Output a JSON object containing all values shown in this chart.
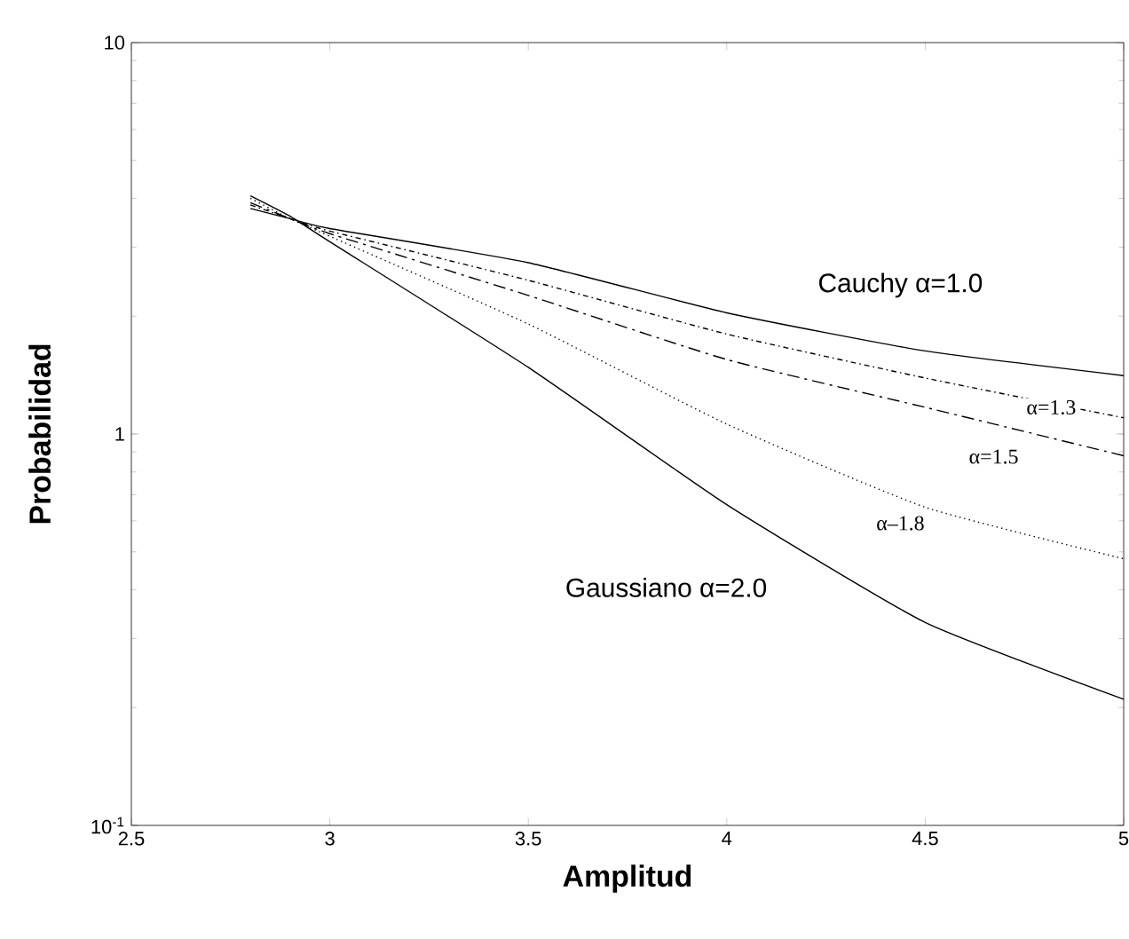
{
  "chart_data": {
    "type": "line",
    "xlabel": "Amplitud",
    "ylabel": "Probabilidad",
    "log": "y",
    "grid": false,
    "marker": "none",
    "xlim": [
      2.5,
      5
    ],
    "ylim": [
      0.1,
      10
    ],
    "xticks": [
      2.5,
      3,
      3.5,
      4,
      4.5,
      5
    ],
    "yticks": [
      {
        "value": 0.1,
        "label": "10$^{-1}$"
      },
      1,
      10
    ],
    "x": [
      2.8,
      2.9,
      3.0,
      3.5,
      4.0,
      4.5,
      5.0
    ],
    "series": [
      {
        "name": "Cauchy α=1.0",
        "color": "#000000",
        "line_style": "solid",
        "values": [
          3.77,
          3.55,
          3.35,
          2.74,
          2.04,
          1.63,
          1.41
        ]
      },
      {
        "name": "α=1.3",
        "color": "#000000",
        "line_style": "dashdot",
        "values": [
          3.85,
          3.55,
          3.3,
          2.47,
          1.8,
          1.39,
          1.1
        ]
      },
      {
        "name": "α=1.5",
        "color": "#000000",
        "line_style": "dashed",
        "values": [
          3.9,
          3.55,
          3.25,
          2.26,
          1.55,
          1.17,
          0.88
        ]
      },
      {
        "name": "α–1.8",
        "color": "#000000",
        "line_style": "dotted",
        "values": [
          4.0,
          3.55,
          3.2,
          1.91,
          1.06,
          0.65,
          0.48
        ]
      },
      {
        "name": "Gaussiano α=2.0",
        "color": "#000000",
        "line_style": "solid",
        "values": [
          4.06,
          3.6,
          3.1,
          1.48,
          0.66,
          0.33,
          0.21
        ]
      }
    ]
  }
}
